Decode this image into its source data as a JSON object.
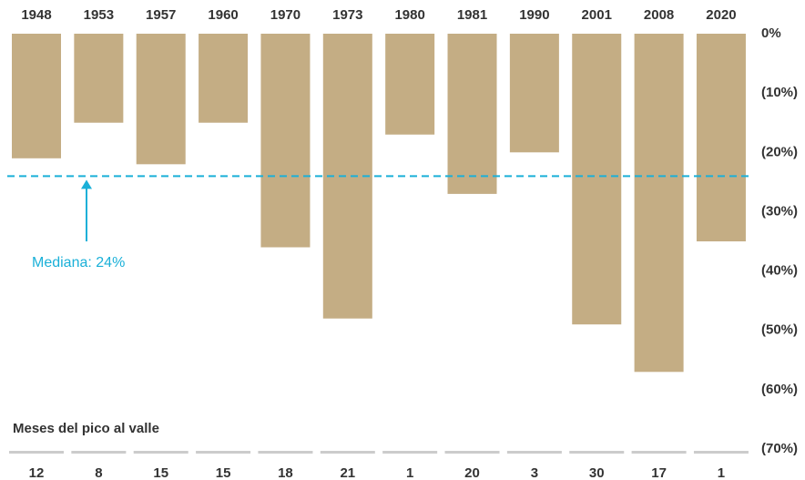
{
  "chart_data": {
    "type": "bar",
    "categories": [
      "1948",
      "1953",
      "1957",
      "1960",
      "1970",
      "1973",
      "1980",
      "1981",
      "1990",
      "2001",
      "2008",
      "2020"
    ],
    "values": [
      -21,
      -15,
      -22,
      -15,
      -36,
      -48,
      -17,
      -27,
      -20,
      -49,
      -57,
      -35
    ],
    "color": "#c4ad84",
    "ylim": [
      -70,
      0
    ],
    "yticks": [
      {
        "value": 0,
        "label": "0%"
      },
      {
        "value": -10,
        "label": "(10%)"
      },
      {
        "value": -20,
        "label": "(20%)"
      },
      {
        "value": -30,
        "label": "(30%)"
      },
      {
        "value": -40,
        "label": "(40%)"
      },
      {
        "value": -50,
        "label": "(50%)"
      },
      {
        "value": -60,
        "label": "(60%)"
      },
      {
        "value": -70,
        "label": "(70%)"
      }
    ],
    "median": {
      "value": -24,
      "label": "Mediana: 24%",
      "color": "#1ab0d8"
    },
    "months_label": "Meses del pico al valle",
    "months": [
      12,
      8,
      15,
      15,
      18,
      21,
      1,
      20,
      3,
      30,
      17,
      1
    ]
  }
}
